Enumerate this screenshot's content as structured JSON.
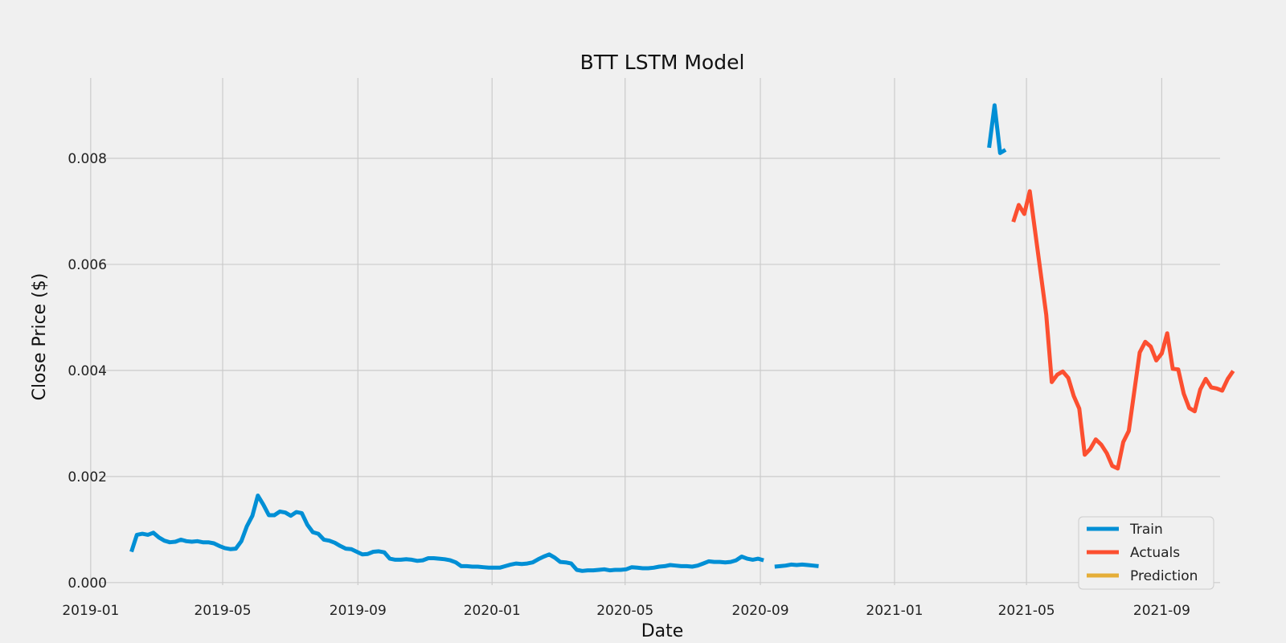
{
  "chart_data": {
    "type": "line",
    "title": "BTT LSTM Model",
    "xlabel": "Date",
    "ylabel": "Close Price ($)",
    "xlim": [
      "2018-12-08",
      "2021-12-23"
    ],
    "ylim": [
      -0.0002,
      0.0095
    ],
    "xticks": [
      "2019-01",
      "2019-05",
      "2019-09",
      "2020-01",
      "2020-05",
      "2020-09",
      "2021-01",
      "2021-05",
      "2021-09"
    ],
    "yticks": [
      "0.000",
      "0.002",
      "0.004",
      "0.006",
      "0.008"
    ],
    "grid": true,
    "legend_position": "lower-right",
    "colors": {
      "Train": "#008fd5",
      "Actuals": "#fc4f30",
      "Prediction": "#e5ae38"
    },
    "series": [
      {
        "name": "Train",
        "segments": [
          [
            [
              "2019-02-07",
              0.00058
            ],
            [
              "2019-02-12",
              0.0009
            ],
            [
              "2019-02-17",
              0.00092
            ],
            [
              "2019-02-22",
              0.0009
            ],
            [
              "2019-02-27",
              0.00094
            ],
            [
              "2019-03-04",
              0.00085
            ],
            [
              "2019-03-09",
              0.00079
            ],
            [
              "2019-03-14",
              0.00076
            ],
            [
              "2019-03-19",
              0.00077
            ],
            [
              "2019-03-24",
              0.00081
            ],
            [
              "2019-03-29",
              0.00078
            ],
            [
              "2019-04-03",
              0.00077
            ],
            [
              "2019-04-08",
              0.00078
            ],
            [
              "2019-04-13",
              0.00076
            ],
            [
              "2019-04-18",
              0.00076
            ],
            [
              "2019-04-23",
              0.00074
            ],
            [
              "2019-04-28",
              0.00069
            ],
            [
              "2019-05-03",
              0.00065
            ],
            [
              "2019-05-08",
              0.00063
            ],
            [
              "2019-05-13",
              0.00064
            ],
            [
              "2019-05-18",
              0.00078
            ],
            [
              "2019-05-23",
              0.00106
            ],
            [
              "2019-05-28",
              0.00126
            ],
            [
              "2019-06-02",
              0.00164
            ],
            [
              "2019-06-07",
              0.00147
            ],
            [
              "2019-06-12",
              0.00127
            ],
            [
              "2019-06-17",
              0.00127
            ],
            [
              "2019-06-22",
              0.00134
            ],
            [
              "2019-06-27",
              0.00132
            ],
            [
              "2019-07-02",
              0.00126
            ],
            [
              "2019-07-07",
              0.00133
            ],
            [
              "2019-07-12",
              0.00131
            ],
            [
              "2019-07-17",
              0.00109
            ],
            [
              "2019-07-22",
              0.00095
            ],
            [
              "2019-07-27",
              0.00092
            ],
            [
              "2019-08-01",
              0.00081
            ],
            [
              "2019-08-06",
              0.00079
            ],
            [
              "2019-08-11",
              0.00075
            ],
            [
              "2019-08-16",
              0.00069
            ],
            [
              "2019-08-21",
              0.00064
            ],
            [
              "2019-08-26",
              0.00063
            ],
            [
              "2019-08-31",
              0.00058
            ],
            [
              "2019-09-05",
              0.00053
            ],
            [
              "2019-09-10",
              0.00054
            ],
            [
              "2019-09-15",
              0.00058
            ],
            [
              "2019-09-20",
              0.00059
            ],
            [
              "2019-09-25",
              0.00057
            ],
            [
              "2019-09-30",
              0.00045
            ],
            [
              "2019-10-05",
              0.00043
            ],
            [
              "2019-10-10",
              0.00043
            ],
            [
              "2019-10-15",
              0.00044
            ],
            [
              "2019-10-20",
              0.00043
            ],
            [
              "2019-10-25",
              0.00041
            ],
            [
              "2019-10-30",
              0.00042
            ],
            [
              "2019-11-04",
              0.00046
            ],
            [
              "2019-11-09",
              0.00046
            ],
            [
              "2019-11-14",
              0.00045
            ],
            [
              "2019-11-19",
              0.00044
            ],
            [
              "2019-11-24",
              0.00042
            ],
            [
              "2019-11-29",
              0.00038
            ],
            [
              "2019-12-04",
              0.00031
            ],
            [
              "2019-12-09",
              0.00031
            ],
            [
              "2019-12-14",
              0.0003
            ],
            [
              "2019-12-19",
              0.0003
            ],
            [
              "2019-12-24",
              0.00029
            ],
            [
              "2019-12-29",
              0.00028
            ],
            [
              "2020-01-03",
              0.00028
            ],
            [
              "2020-01-08",
              0.00028
            ],
            [
              "2020-01-13",
              0.00031
            ],
            [
              "2020-01-18",
              0.00034
            ],
            [
              "2020-01-23",
              0.00036
            ],
            [
              "2020-01-28",
              0.00035
            ],
            [
              "2020-02-02",
              0.00036
            ],
            [
              "2020-02-07",
              0.00038
            ],
            [
              "2020-02-12",
              0.00044
            ],
            [
              "2020-02-17",
              0.00049
            ],
            [
              "2020-02-22",
              0.00053
            ],
            [
              "2020-02-27",
              0.00047
            ],
            [
              "2020-03-03",
              0.00039
            ],
            [
              "2020-03-08",
              0.00038
            ],
            [
              "2020-03-13",
              0.00036
            ],
            [
              "2020-03-18",
              0.00024
            ],
            [
              "2020-03-23",
              0.00022
            ],
            [
              "2020-03-28",
              0.00023
            ],
            [
              "2020-04-02",
              0.00023
            ],
            [
              "2020-04-07",
              0.00024
            ],
            [
              "2020-04-12",
              0.00025
            ],
            [
              "2020-04-17",
              0.00023
            ],
            [
              "2020-04-22",
              0.00024
            ],
            [
              "2020-04-27",
              0.00024
            ],
            [
              "2020-05-02",
              0.00025
            ],
            [
              "2020-05-07",
              0.00029
            ],
            [
              "2020-05-12",
              0.00028
            ],
            [
              "2020-05-17",
              0.00027
            ],
            [
              "2020-05-22",
              0.00027
            ],
            [
              "2020-05-27",
              0.00028
            ],
            [
              "2020-06-01",
              0.0003
            ],
            [
              "2020-06-06",
              0.00031
            ],
            [
              "2020-06-11",
              0.00033
            ],
            [
              "2020-06-16",
              0.00032
            ],
            [
              "2020-06-21",
              0.00031
            ],
            [
              "2020-06-26",
              0.00031
            ],
            [
              "2020-07-01",
              0.0003
            ],
            [
              "2020-07-06",
              0.00032
            ],
            [
              "2020-07-11",
              0.00036
            ],
            [
              "2020-07-16",
              0.0004
            ],
            [
              "2020-07-21",
              0.00039
            ],
            [
              "2020-07-26",
              0.00039
            ],
            [
              "2020-07-31",
              0.00038
            ],
            [
              "2020-08-05",
              0.00039
            ],
            [
              "2020-08-10",
              0.00042
            ],
            [
              "2020-08-15",
              0.00049
            ],
            [
              "2020-08-20",
              0.00045
            ],
            [
              "2020-08-25",
              0.00043
            ],
            [
              "2020-08-30",
              0.00045
            ],
            [
              "2020-09-04",
              0.00042
            ]
          ],
          [
            [
              "2020-09-14",
              0.0003
            ],
            [
              "2020-09-19",
              0.00031
            ],
            [
              "2020-09-24",
              0.00032
            ],
            [
              "2020-09-29",
              0.00034
            ],
            [
              "2020-10-04",
              0.00033
            ],
            [
              "2020-10-09",
              0.00034
            ],
            [
              "2020-10-14",
              0.00033
            ],
            [
              "2020-10-19",
              0.00032
            ],
            [
              "2020-10-24",
              0.00031
            ]
          ],
          [
            [
              "2021-03-28",
              0.0082
            ],
            [
              "2021-04-02",
              0.009
            ],
            [
              "2021-04-07",
              0.0081
            ],
            [
              "2021-04-12",
              0.00816
            ]
          ]
        ]
      },
      {
        "name": "Actuals",
        "segments": [
          [
            [
              "2021-04-19",
              0.0068
            ],
            [
              "2021-04-24",
              0.00712
            ],
            [
              "2021-04-29",
              0.00695
            ],
            [
              "2021-05-04",
              0.00738
            ],
            [
              "2021-05-19",
              0.00505
            ],
            [
              "2021-05-24",
              0.00378
            ],
            [
              "2021-05-29",
              0.00392
            ],
            [
              "2021-06-03",
              0.00398
            ],
            [
              "2021-06-08",
              0.00386
            ],
            [
              "2021-06-13",
              0.00352
            ],
            [
              "2021-06-18",
              0.00328
            ],
            [
              "2021-06-23",
              0.00241
            ],
            [
              "2021-06-28",
              0.00252
            ],
            [
              "2021-07-03",
              0.0027
            ],
            [
              "2021-07-08",
              0.0026
            ],
            [
              "2021-07-13",
              0.00244
            ],
            [
              "2021-07-18",
              0.0022
            ],
            [
              "2021-07-23",
              0.00215
            ],
            [
              "2021-07-28",
              0.00265
            ],
            [
              "2021-08-02",
              0.00286
            ],
            [
              "2021-08-07",
              0.0036
            ],
            [
              "2021-08-12",
              0.00434
            ],
            [
              "2021-08-17",
              0.00454
            ],
            [
              "2021-08-22",
              0.00445
            ],
            [
              "2021-08-27",
              0.00419
            ],
            [
              "2021-09-01",
              0.00432
            ],
            [
              "2021-09-06",
              0.0047
            ],
            [
              "2021-09-11",
              0.00403
            ],
            [
              "2021-09-16",
              0.00402
            ],
            [
              "2021-09-21",
              0.00356
            ],
            [
              "2021-09-26",
              0.00329
            ],
            [
              "2021-10-01",
              0.00323
            ],
            [
              "2021-10-06",
              0.00364
            ],
            [
              "2021-10-11",
              0.00384
            ],
            [
              "2021-10-16",
              0.00368
            ],
            [
              "2021-10-21",
              0.00366
            ],
            [
              "2021-10-26",
              0.00362
            ],
            [
              "2021-10-31",
              0.00384
            ],
            [
              "2021-11-05",
              0.00399
            ]
          ]
        ]
      },
      {
        "name": "Prediction",
        "segments": []
      }
    ]
  }
}
